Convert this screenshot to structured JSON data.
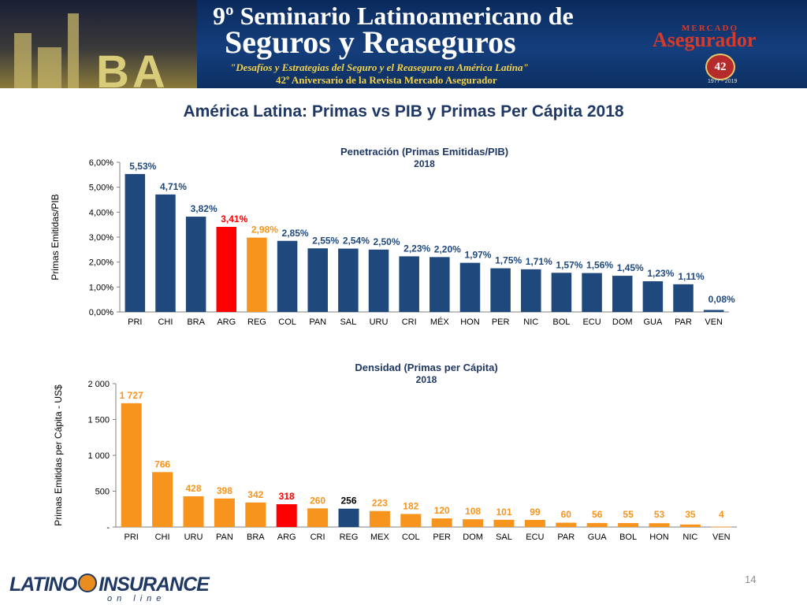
{
  "banner": {
    "line1": "9º Seminario Latinoamericano de",
    "line2": "Seguros y Reaseguros",
    "line3": "\"Desafíos y Estrategias del Seguro y el Reaseguro en América Latina\"",
    "line4": "42º Aniversario de la Revista Mercado Asegurador",
    "brand_top": "MERCADO",
    "brand_main": "Asegurador",
    "badge_number": "42",
    "badge_years": "1977 - 2019",
    "city_letters": "BA"
  },
  "slide": {
    "title": "América Latina: Primas vs PIB y Primas Per Cápita 2018",
    "page_number": "14"
  },
  "logo": {
    "left": "LATINO",
    "right": "INSURANCE",
    "sub": "on line"
  },
  "colors": {
    "navy": "#1f497d",
    "orange": "#f7941d",
    "red": "#ff0000",
    "title_blue": "#1f3864"
  },
  "chart_data": [
    {
      "type": "bar",
      "title": "Penetración (Primas Emitidas/PIB)",
      "subtitle": "2018",
      "xlabel": "",
      "ylabel": "Primas Emitidas/PIB",
      "ylim": [
        0,
        6
      ],
      "y_ticks": [
        "0,00%",
        "1,00%",
        "2,00%",
        "3,00%",
        "4,00%",
        "5,00%",
        "6,00%"
      ],
      "grid": false,
      "categories": [
        "PRI",
        "CHI",
        "BRA",
        "ARG",
        "REG",
        "COL",
        "PAN",
        "SAL",
        "URU",
        "CRI",
        "MÉX",
        "HON",
        "PER",
        "NIC",
        "BOL",
        "ECU",
        "DOM",
        "GUA",
        "PAR",
        "VEN"
      ],
      "values": [
        5.53,
        4.71,
        3.82,
        3.41,
        2.98,
        2.85,
        2.55,
        2.54,
        2.5,
        2.23,
        2.2,
        1.97,
        1.75,
        1.71,
        1.57,
        1.56,
        1.45,
        1.23,
        1.11,
        0.08
      ],
      "data_labels": [
        "5,53%",
        "4,71%",
        "3,82%",
        "3,41%",
        "2,98%",
        "2,85%",
        "2,55%",
        "2,54%",
        "2,50%",
        "2,23%",
        "2,20%",
        "1,97%",
        "1,75%",
        "1,71%",
        "1,57%",
        "1,56%",
        "1,45%",
        "1,23%",
        "1,11%",
        "0,08%"
      ],
      "bar_colors": [
        "navy",
        "navy",
        "navy",
        "red",
        "orange",
        "navy",
        "navy",
        "navy",
        "navy",
        "navy",
        "navy",
        "navy",
        "navy",
        "navy",
        "navy",
        "navy",
        "navy",
        "navy",
        "navy",
        "navy"
      ]
    },
    {
      "type": "bar",
      "title": "Densidad (Primas per Cápita)",
      "subtitle": "2018",
      "xlabel": "",
      "ylabel": "Primas Emitidas per Cápita - US$",
      "ylim": [
        0,
        2000
      ],
      "y_ticks": [
        "-",
        "500",
        "1 000",
        "1 500",
        "2 000"
      ],
      "grid": false,
      "categories": [
        "PRI",
        "CHI",
        "URU",
        "PAN",
        "BRA",
        "ARG",
        "CRI",
        "REG",
        "MEX",
        "COL",
        "PER",
        "DOM",
        "SAL",
        "ECU",
        "PAR",
        "GUA",
        "BOL",
        "HON",
        "NIC",
        "VEN"
      ],
      "values": [
        1727,
        766,
        428,
        398,
        342,
        318,
        260,
        256,
        223,
        182,
        120,
        108,
        101,
        99,
        60,
        56,
        55,
        53,
        35,
        4
      ],
      "data_labels": [
        "1 727",
        "766",
        "428",
        "398",
        "342",
        "318",
        "260",
        "256",
        "223",
        "182",
        "120",
        "108",
        "101",
        "99",
        "60",
        "56",
        "55",
        "53",
        "35",
        "4"
      ],
      "bar_colors": [
        "orange",
        "orange",
        "orange",
        "orange",
        "orange",
        "red",
        "orange",
        "navy",
        "orange",
        "orange",
        "orange",
        "orange",
        "orange",
        "orange",
        "orange",
        "orange",
        "orange",
        "orange",
        "orange",
        "orange"
      ]
    }
  ]
}
